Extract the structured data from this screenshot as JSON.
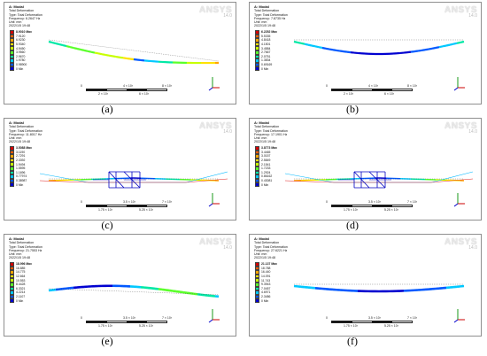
{
  "legend_colors": [
    "#d40000",
    "#ff5a00",
    "#ffa500",
    "#ffe100",
    "#c8ff00",
    "#5aff2a",
    "#00e8a5",
    "#00c8ff",
    "#0058ff",
    "#0000d0"
  ],
  "panels": [
    {
      "id": "a",
      "caption": "(a)",
      "title": "A: Modal",
      "type": "Total Deformation",
      "type2": "Type: Total Deformation",
      "freq": "Frequency: 6.2647 Hz",
      "unit": "Unit: mm",
      "date": "2022/1/5 19:48",
      "legend": [
        "8.9010 Max",
        "7.9120",
        "6.9230",
        "5.9340",
        "4.9450",
        "3.9560",
        "2.9670",
        "1.9780",
        "0.98900",
        "0 Min"
      ],
      "ruler_top": [
        "0",
        "4 × 10³",
        "8 × 10³"
      ],
      "ruler_bot": [
        "2 × 10³",
        "6 × 10³"
      ],
      "shape": "sag"
    },
    {
      "id": "b",
      "caption": "(b)",
      "title": "A: Modal",
      "type": "Total Deformation",
      "type2": "Type: Total Deformation",
      "freq": "Frequency: 7.8735 Hz",
      "unit": "Unit: mm",
      "date": "2022/1/5 19:48",
      "legend": [
        "6.2252 Max",
        "5.5335",
        "4.8418",
        "4.1501",
        "3.4584",
        "2.7667",
        "2.0751",
        "1.3834",
        "0.69169",
        "0 Min"
      ],
      "ruler_top": [
        "0",
        "4 × 10³",
        "8 × 10³"
      ],
      "ruler_bot": [
        "2 × 10³",
        "6 × 10³"
      ],
      "shape": "sag"
    },
    {
      "id": "c",
      "caption": "(c)",
      "title": "A: Modal",
      "type": "Total Deformation",
      "type2": "Type: Total Deformation",
      "freq": "Frequency: 11.8017 Hz",
      "unit": "Unit: mm",
      "date": "2022/1/5 19:48",
      "legend": [
        "3.5088 Max",
        "3.1190",
        "2.7291",
        "2.3392",
        "1.9494",
        "1.5595",
        "1.1696",
        "0.77974",
        "0.38987",
        "0 Min"
      ],
      "ruler_top": [
        "0",
        "3.5 × 10³",
        "7 × 10³"
      ],
      "ruler_bot": [
        "1.75 × 10³",
        "5.25 × 10³"
      ],
      "shape": "truss"
    },
    {
      "id": "d",
      "caption": "(d)",
      "title": "A: Modal",
      "type": "Total Deformation",
      "type2": "Type: Total Deformation",
      "freq": "Frequency: 17.1901 Hz",
      "unit": "Unit: mm",
      "date": "2022/1/5 19:48",
      "legend": [
        "3.8773 Max",
        "3.4465",
        "3.0157",
        "2.5849",
        "2.1541",
        "1.7233",
        "1.2924",
        "0.86162",
        "0.43081",
        "0 Min"
      ],
      "ruler_top": [
        "0",
        "3.5 × 10³",
        "7 × 10³"
      ],
      "ruler_bot": [
        "1.75 × 10³",
        "5.25 × 10³"
      ],
      "shape": "truss"
    },
    {
      "id": "e",
      "caption": "(e)",
      "title": "A: Modal",
      "type": "Total Deformation",
      "type2": "Type: Total Deformation",
      "freq": "Frequency: 21.7553 Hz",
      "unit": "Unit: mm",
      "date": "2022/1/5 19:48",
      "legend": [
        "18.996 Max",
        "16.885",
        "14.775",
        "12.664",
        "10.553",
        "8.4428",
        "6.3321",
        "4.2214",
        "2.1107",
        "0 Min"
      ],
      "ruler_top": [
        "0",
        "3.5 × 10³",
        "7 × 10³"
      ],
      "ruler_bot": [
        "1.75 × 10³",
        "5.25 × 10³"
      ],
      "shape": "wave"
    },
    {
      "id": "f",
      "caption": "(f)",
      "title": "A: Modal",
      "type": "Total Deformation",
      "type2": "Type: Total Deformation",
      "freq": "Frequency: 27.6221 Hz",
      "unit": "Unit: mm",
      "date": "2022/1/5 19:48",
      "legend": [
        "21.137 Max",
        "18.788",
        "16.440",
        "14.091",
        "11.743",
        "9.3943",
        "7.0457",
        "4.6971",
        "2.3486",
        "0 Min"
      ],
      "ruler_top": [
        "0",
        "3.5 × 10³",
        "7 × 10³"
      ],
      "ruler_bot": [
        "1.75 × 10³",
        "5.25 × 10³"
      ],
      "shape": "smile"
    }
  ],
  "logo": {
    "brand": "ANSYS",
    "version": "14.0"
  }
}
